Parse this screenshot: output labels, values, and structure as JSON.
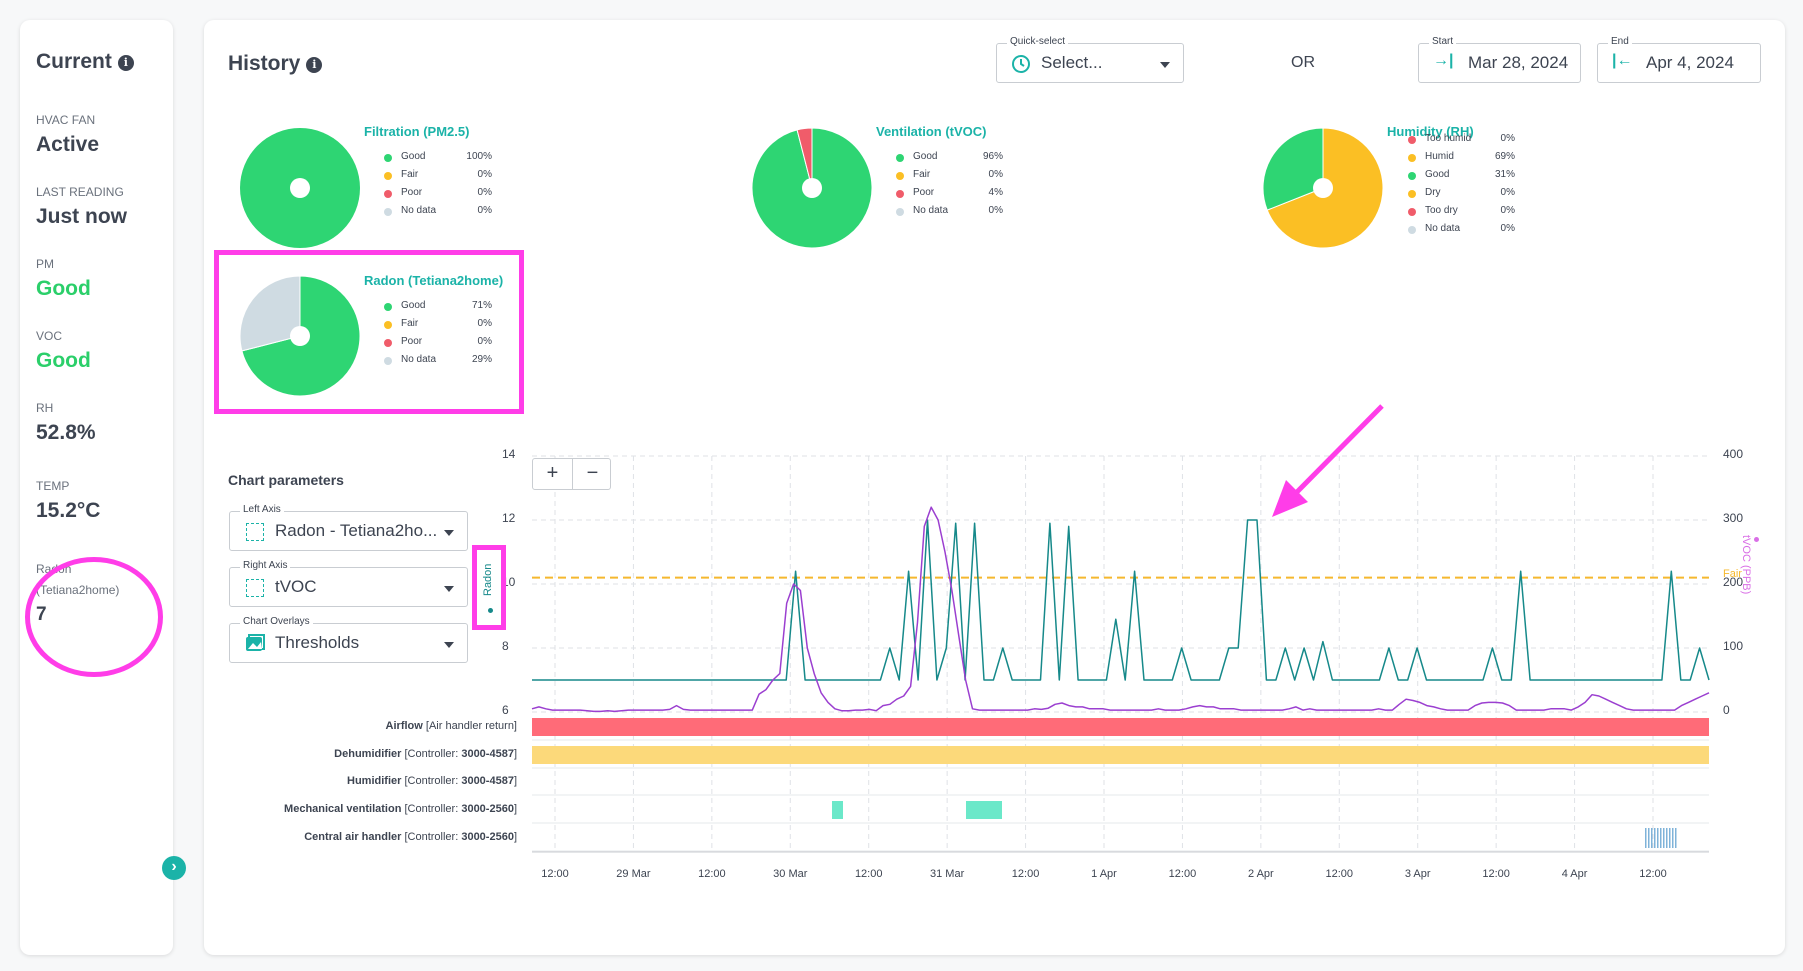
{
  "current": {
    "title": "Current",
    "info_icon": "info-icon",
    "items": [
      {
        "label": "HVAC FAN",
        "value": "Active",
        "status": "normal"
      },
      {
        "label": "LAST READING",
        "value": "Just now",
        "status": "normal"
      },
      {
        "label": "PM",
        "value": "Good",
        "status": "good"
      },
      {
        "label": "VOC",
        "value": "Good",
        "status": "good"
      },
      {
        "label": "RH",
        "value": "52.8%",
        "status": "normal"
      },
      {
        "label": "TEMP",
        "value": "15.2°C",
        "status": "normal"
      },
      {
        "label": "Radon",
        "label2": "(Tetiana2home)",
        "value": "7",
        "status": "normal"
      }
    ],
    "expand_icon": "chevron-right-icon",
    "expand_glyph": "›"
  },
  "history": {
    "title": "History",
    "quick_select": {
      "legend": "Quick-select",
      "value": "Select...",
      "icon": "clock-icon"
    },
    "or_label": "OR",
    "start": {
      "legend": "Start",
      "value": "Mar 28, 2024",
      "icon": "arrow-to-right-icon",
      "glyph": "→|"
    },
    "end": {
      "legend": "End",
      "value": "Apr 4, 2024",
      "icon": "arrow-to-left-icon",
      "glyph": "|←"
    }
  },
  "pies": [
    {
      "title": "Filtration (PM2.5)",
      "legend": [
        {
          "label": "Good",
          "value": "100%",
          "color": "#2ed573"
        },
        {
          "label": "Fair",
          "value": "0%",
          "color": "#fbbf24"
        },
        {
          "label": "Poor",
          "value": "0%",
          "color": "#f05c6a"
        },
        {
          "label": "No data",
          "value": "0%",
          "color": "#cfdbe2"
        }
      ],
      "slices": [
        100,
        0,
        0,
        0
      ]
    },
    {
      "title": "Ventilation (tVOC)",
      "legend": [
        {
          "label": "Good",
          "value": "96%",
          "color": "#2ed573"
        },
        {
          "label": "Fair",
          "value": "0%",
          "color": "#fbbf24"
        },
        {
          "label": "Poor",
          "value": "4%",
          "color": "#f05c6a"
        },
        {
          "label": "No data",
          "value": "0%",
          "color": "#cfdbe2"
        }
      ],
      "slices": [
        96,
        0,
        4,
        0
      ]
    },
    {
      "title": "Humidity (RH)",
      "legend": [
        {
          "label": "Too humid",
          "value": "0%",
          "color": "#f05c6a"
        },
        {
          "label": "Humid",
          "value": "69%",
          "color": "#fbbf24"
        },
        {
          "label": "Good",
          "value": "31%",
          "color": "#2ed573"
        },
        {
          "label": "Dry",
          "value": "0%",
          "color": "#fbbf24"
        },
        {
          "label": "Too dry",
          "value": "0%",
          "color": "#f05c6a"
        },
        {
          "label": "No data",
          "value": "0%",
          "color": "#cfdbe2"
        }
      ],
      "slices": [
        0,
        69,
        31,
        0,
        0,
        0
      ]
    },
    {
      "title": "Radon (Tetiana2home)",
      "legend": [
        {
          "label": "Good",
          "value": "71%",
          "color": "#2ed573"
        },
        {
          "label": "Fair",
          "value": "0%",
          "color": "#fbbf24"
        },
        {
          "label": "Poor",
          "value": "0%",
          "color": "#f05c6a"
        },
        {
          "label": "No data",
          "value": "29%",
          "color": "#cfdbe2"
        }
      ],
      "slices": [
        71,
        0,
        0,
        29
      ]
    }
  ],
  "chart_params": {
    "title": "Chart parameters",
    "left_axis": {
      "legend": "Left Axis",
      "value": "Radon - Tetiana2ho...",
      "icon": "dotted-grid-icon"
    },
    "right_axis": {
      "legend": "Right Axis",
      "value": "tVOC",
      "icon": "dotted-grid-icon"
    },
    "overlays": {
      "legend": "Chart Overlays",
      "value": "Thresholds",
      "icon": "image-icon"
    }
  },
  "zoom": {
    "plus": "+",
    "minus": "−"
  },
  "chart_data": {
    "type": "line",
    "left_axis_label": "Radon",
    "right_axis_label": "tVOC (PPB)",
    "left_ticks": [
      "14",
      "12",
      "10",
      "8",
      "6"
    ],
    "right_ticks": [
      "400",
      "300",
      "200",
      "100",
      "0"
    ],
    "ylim_left": [
      6,
      14
    ],
    "ylim_right": [
      0,
      400
    ],
    "threshold": {
      "label": "Fair",
      "value_left": 10.2,
      "color": "#f5b82e"
    },
    "x_ticks": [
      "12:00",
      "29 Mar",
      "12:00",
      "30 Mar",
      "12:00",
      "31 Mar",
      "12:00",
      "1 Apr",
      "12:00",
      "2 Apr",
      "12:00",
      "3 Apr",
      "12:00",
      "4 Apr",
      "12:00"
    ],
    "series": [
      {
        "name": "Radon",
        "color": "#16898a",
        "axis": "left",
        "values": [
          7,
          7,
          7,
          7,
          7,
          7,
          7,
          7,
          7,
          7,
          7,
          7,
          7,
          7,
          7,
          7,
          7,
          7,
          7,
          7,
          7,
          7,
          7,
          7,
          7,
          7,
          7,
          7,
          10.4,
          7,
          7,
          7,
          7,
          7,
          7,
          7,
          7,
          7,
          8,
          7,
          10.4,
          7,
          12,
          7,
          8,
          11.9,
          7,
          11.9,
          7,
          7,
          8,
          7,
          7,
          7,
          7,
          11.9,
          7,
          11.8,
          7,
          7,
          7,
          7,
          8.9,
          7,
          10.4,
          7,
          7,
          7,
          7,
          8,
          7,
          7,
          7,
          7,
          8,
          8,
          12,
          12,
          7,
          7,
          8,
          7,
          8,
          7,
          8.2,
          7,
          7,
          7,
          7,
          7,
          7,
          8,
          7,
          7,
          8,
          7,
          7,
          7,
          7,
          7,
          7,
          7,
          8,
          7,
          7,
          10.4,
          7,
          7,
          7,
          7,
          7,
          7,
          7,
          7,
          7,
          7,
          7,
          7,
          7,
          7,
          7,
          10.4,
          7,
          7,
          8,
          7
        ]
      },
      {
        "name": "tVOC (PPB)",
        "color": "#9b3fd0",
        "axis": "right",
        "values": [
          5,
          8,
          5,
          3,
          3,
          3,
          3,
          3,
          2,
          1,
          1,
          2,
          1,
          2,
          3,
          3,
          3,
          3,
          3,
          3,
          4,
          10,
          4,
          3,
          3,
          3,
          3,
          3,
          3,
          3,
          3,
          3,
          3,
          28,
          35,
          50,
          60,
          170,
          200,
          190,
          100,
          60,
          30,
          15,
          5,
          2,
          2,
          3,
          3,
          4,
          2,
          10,
          12,
          20,
          25,
          40,
          140,
          290,
          320,
          300,
          250,
          190,
          120,
          50,
          5,
          3,
          3,
          3,
          3,
          3,
          3,
          3,
          3,
          5,
          4,
          6,
          12,
          14,
          10,
          8,
          8,
          5,
          5,
          5,
          3,
          3,
          3,
          3,
          3,
          3,
          3,
          5,
          3,
          3,
          3,
          5,
          8,
          10,
          8,
          8,
          5,
          5,
          5,
          3,
          3,
          3,
          3,
          3,
          3,
          3,
          5,
          8,
          3,
          5,
          3,
          3,
          3,
          3,
          3,
          3,
          3,
          3,
          3,
          5,
          3,
          3,
          12,
          20,
          18,
          15,
          10,
          8,
          5,
          3,
          3,
          3,
          3,
          10,
          14,
          15,
          15,
          14,
          10,
          3,
          3,
          3,
          3,
          3,
          5,
          5,
          5,
          3,
          8,
          15,
          27,
          25,
          20,
          15,
          10,
          5,
          3,
          3,
          3,
          3,
          3,
          3,
          3,
          10,
          15,
          20,
          25,
          30
        ]
      }
    ]
  },
  "equipment_rows": [
    {
      "name": "Airflow",
      "detail": "[Air handler return]",
      "controller": ""
    },
    {
      "name": "Dehumidifier",
      "detail": "[Controller: ",
      "controller": "3000-4587",
      "close": "]"
    },
    {
      "name": "Humidifier",
      "detail": "[Controller: ",
      "controller": "3000-4587",
      "close": "]"
    },
    {
      "name": "Mechanical ventilation",
      "detail": "[Controller: ",
      "controller": "3000-2560",
      "close": "]"
    },
    {
      "name": "Central air handler",
      "detail": "[Controller: ",
      "controller": "3000-2560",
      "close": "]"
    }
  ],
  "equipment_colors": {
    "airflow": "#ff6b78",
    "dehumidifier": "#fcd97a",
    "ventilation": "#6be8c9",
    "air_handler": "#7fb3d9"
  },
  "annotation_color": "#ff3de8"
}
